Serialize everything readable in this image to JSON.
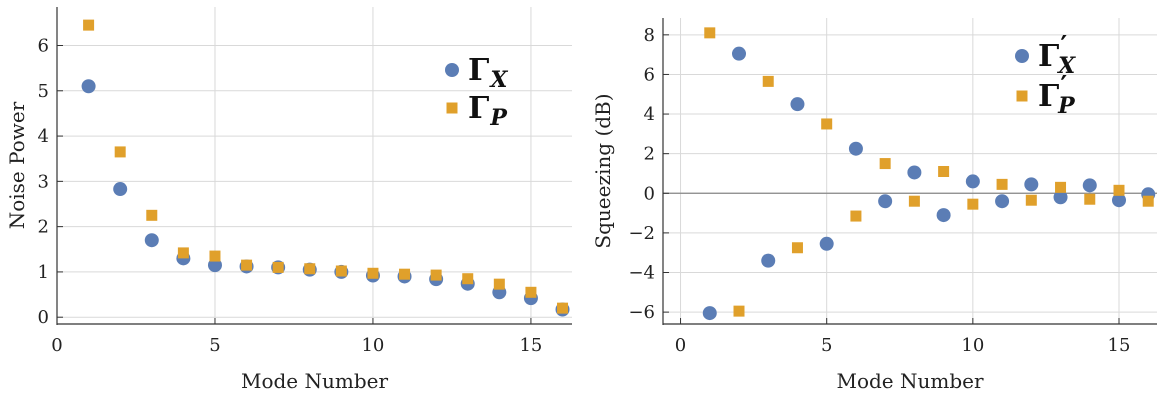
{
  "chart_data": [
    {
      "type": "scatter",
      "xlabel": "Mode Number",
      "ylabel": "Noise Power",
      "xlim": [
        0,
        16.3
      ],
      "ylim": [
        -0.15,
        6.85
      ],
      "xticks": [
        0,
        5,
        10,
        15
      ],
      "yticks": [
        0,
        1,
        2,
        3,
        4,
        5,
        6
      ],
      "xtick_labels": [
        "0",
        "5",
        "10",
        "15"
      ],
      "ytick_labels": [
        "0",
        "1",
        "2",
        "3",
        "4",
        "5",
        "6"
      ],
      "grid": true,
      "legend_position": "top-right",
      "series": [
        {
          "legend_main": "Γ",
          "legend_sub": "X",
          "legend_prime": "",
          "color": "#5b7db5",
          "marker": "circle",
          "x": [
            1,
            2,
            3,
            4,
            5,
            6,
            7,
            8,
            9,
            10,
            11,
            12,
            13,
            14,
            15,
            16
          ],
          "y": [
            5.1,
            2.83,
            1.7,
            1.3,
            1.15,
            1.12,
            1.1,
            1.05,
            1.0,
            0.92,
            0.9,
            0.84,
            0.74,
            0.55,
            0.42,
            0.17
          ]
        },
        {
          "legend_main": "Γ",
          "legend_sub": "P",
          "legend_prime": "",
          "color": "#e0a02b",
          "marker": "square",
          "x": [
            1,
            2,
            3,
            4,
            5,
            6,
            7,
            8,
            9,
            10,
            11,
            12,
            13,
            14,
            15,
            16
          ],
          "y": [
            6.45,
            3.65,
            2.25,
            1.42,
            1.35,
            1.15,
            1.1,
            1.07,
            1.02,
            0.97,
            0.95,
            0.93,
            0.85,
            0.73,
            0.55,
            0.2
          ]
        }
      ]
    },
    {
      "type": "scatter",
      "xlabel": "Mode Number",
      "ylabel": "Squeezing (dB)",
      "xlim": [
        -0.6,
        16.3
      ],
      "ylim": [
        -6.6,
        8.85
      ],
      "xticks": [
        0,
        5,
        10,
        15
      ],
      "yticks": [
        -6,
        -4,
        -2,
        0,
        2,
        4,
        6,
        8
      ],
      "xtick_labels": [
        "0",
        "5",
        "10",
        "15"
      ],
      "ytick_labels": [
        "−6",
        "−4",
        "−2",
        "0",
        "2",
        "4",
        "6",
        "8"
      ],
      "grid": true,
      "zero_line": true,
      "legend_position": "top-right",
      "series": [
        {
          "legend_main": "Γ",
          "legend_sub": "X",
          "legend_prime": "′",
          "color": "#5b7db5",
          "marker": "circle",
          "x": [
            1,
            2,
            3,
            4,
            5,
            6,
            7,
            8,
            9,
            10,
            11,
            12,
            13,
            14,
            15,
            16
          ],
          "y": [
            -6.05,
            7.05,
            -3.4,
            4.5,
            -2.55,
            2.25,
            -0.4,
            1.05,
            -1.1,
            0.6,
            -0.4,
            0.45,
            -0.2,
            0.4,
            -0.35,
            -0.05
          ]
        },
        {
          "legend_main": "Γ",
          "legend_sub": "P",
          "legend_prime": "′",
          "color": "#e0a02b",
          "marker": "square",
          "x": [
            1,
            2,
            3,
            4,
            5,
            6,
            7,
            8,
            9,
            10,
            11,
            12,
            13,
            14,
            15,
            16
          ],
          "y": [
            8.1,
            -5.95,
            5.65,
            -2.75,
            3.5,
            -1.15,
            1.5,
            -0.4,
            1.1,
            -0.55,
            0.45,
            -0.35,
            0.3,
            -0.3,
            0.15,
            -0.4
          ]
        }
      ]
    }
  ]
}
